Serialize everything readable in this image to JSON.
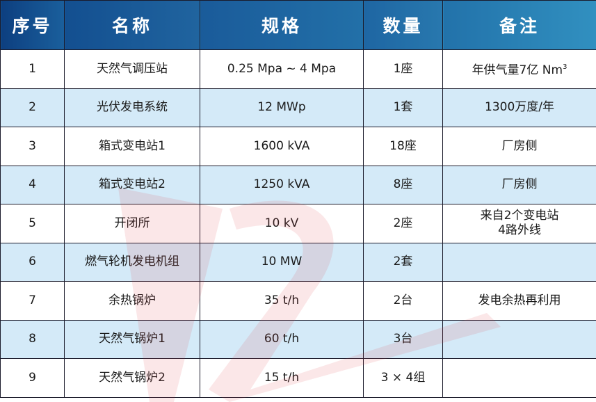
{
  "headers": [
    "序号",
    "名称",
    "规格",
    "数量",
    "备注"
  ],
  "rows": [
    {
      "no": "1",
      "name": "天然气调压站",
      "spec": "0.25 Mpa ~ 4 Mpa",
      "qty": "1座",
      "note": "年供气量7亿 Nm",
      "note_sup": "3"
    },
    {
      "no": "2",
      "name": "光伏发电系统",
      "spec": "12 MWp",
      "qty": "1套",
      "note": "1300万度/年"
    },
    {
      "no": "3",
      "name": "箱式变电站1",
      "spec": "1600 kVA",
      "qty": "18座",
      "note": "厂房侧"
    },
    {
      "no": "4",
      "name": "箱式变电站2",
      "spec": "1250 kVA",
      "qty": "8座",
      "note": "厂房侧"
    },
    {
      "no": "5",
      "name": "开闭所",
      "spec": "10 kV",
      "qty": "2座",
      "note": "来自2个变电站",
      "note2": "4路外线"
    },
    {
      "no": "6",
      "name": "燃气轮机发电机组",
      "spec": "10 MW",
      "qty": "2套",
      "note": ""
    },
    {
      "no": "7",
      "name": "余热锅炉",
      "spec": "35 t/h",
      "qty": "2台",
      "note": "发电余热再利用"
    },
    {
      "no": "8",
      "name": "天然气锅炉1",
      "spec": "60 t/h",
      "qty": "3台",
      "note": ""
    },
    {
      "no": "9",
      "name": "天然气锅炉2",
      "spec": "15 t/h",
      "qty": "3 × 4组",
      "note": ""
    }
  ],
  "colors": {
    "header_start": "#0d3f80",
    "header_end": "#3190c0",
    "alt_row": "#cde6f7",
    "watermark": "#e0393e"
  }
}
